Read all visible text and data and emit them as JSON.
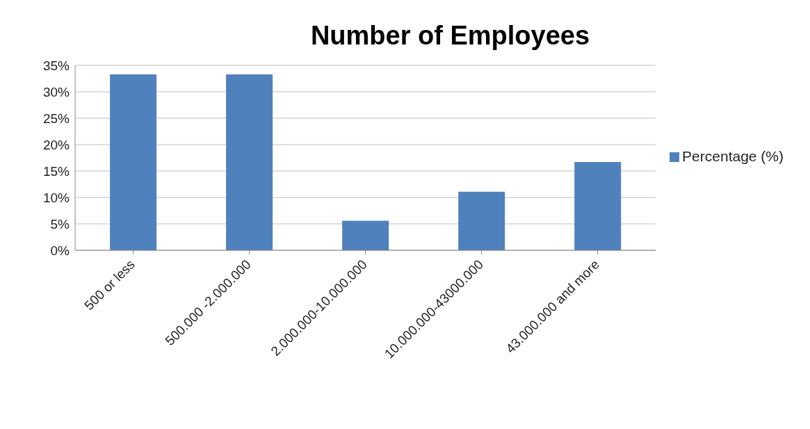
{
  "chart_data": {
    "type": "bar",
    "title": "Number of Employees",
    "categories": [
      "500 or less",
      "500.000 -2.000.000",
      "2.000.000-10.000.000",
      "10.000.000-43000.000",
      "43.000.000 and more"
    ],
    "series": [
      {
        "name": "Percentage (%)",
        "color": "#4f81bd",
        "values": [
          33.3,
          33.3,
          5.6,
          11.1,
          16.7
        ]
      }
    ],
    "ylim": [
      0,
      35
    ],
    "yticks": [
      {
        "value": 0,
        "label": "0%"
      },
      {
        "value": 5,
        "label": "5%"
      },
      {
        "value": 10,
        "label": "10%"
      },
      {
        "value": 15,
        "label": "15%"
      },
      {
        "value": 20,
        "label": "20%"
      },
      {
        "value": 25,
        "label": "25%"
      },
      {
        "value": 30,
        "label": "30%"
      },
      {
        "value": 35,
        "label": "35%"
      }
    ],
    "grid": "y",
    "legend": "right"
  }
}
